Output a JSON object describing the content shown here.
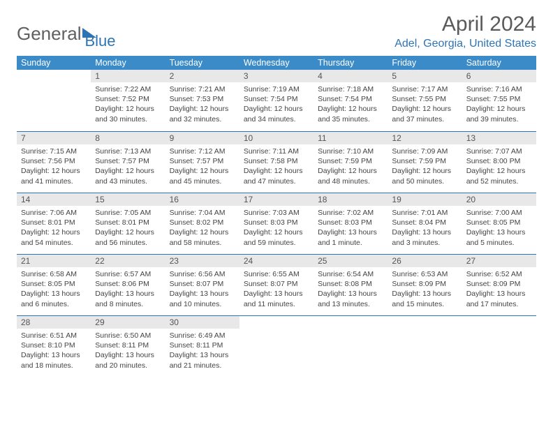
{
  "logo": {
    "part1": "General",
    "part2": "Blue"
  },
  "title": "April 2024",
  "location": "Adel, Georgia, United States",
  "colors": {
    "header_bg": "#3b8bc9",
    "accent": "#2e74b5",
    "daynum_bg": "#e8e8e8",
    "text": "#444444"
  },
  "weekdays": [
    "Sunday",
    "Monday",
    "Tuesday",
    "Wednesday",
    "Thursday",
    "Friday",
    "Saturday"
  ],
  "weeks": [
    [
      {
        "n": "",
        "sr": "",
        "ss": "",
        "dl": ""
      },
      {
        "n": "1",
        "sr": "Sunrise: 7:22 AM",
        "ss": "Sunset: 7:52 PM",
        "dl": "Daylight: 12 hours and 30 minutes."
      },
      {
        "n": "2",
        "sr": "Sunrise: 7:21 AM",
        "ss": "Sunset: 7:53 PM",
        "dl": "Daylight: 12 hours and 32 minutes."
      },
      {
        "n": "3",
        "sr": "Sunrise: 7:19 AM",
        "ss": "Sunset: 7:54 PM",
        "dl": "Daylight: 12 hours and 34 minutes."
      },
      {
        "n": "4",
        "sr": "Sunrise: 7:18 AM",
        "ss": "Sunset: 7:54 PM",
        "dl": "Daylight: 12 hours and 35 minutes."
      },
      {
        "n": "5",
        "sr": "Sunrise: 7:17 AM",
        "ss": "Sunset: 7:55 PM",
        "dl": "Daylight: 12 hours and 37 minutes."
      },
      {
        "n": "6",
        "sr": "Sunrise: 7:16 AM",
        "ss": "Sunset: 7:55 PM",
        "dl": "Daylight: 12 hours and 39 minutes."
      }
    ],
    [
      {
        "n": "7",
        "sr": "Sunrise: 7:15 AM",
        "ss": "Sunset: 7:56 PM",
        "dl": "Daylight: 12 hours and 41 minutes."
      },
      {
        "n": "8",
        "sr": "Sunrise: 7:13 AM",
        "ss": "Sunset: 7:57 PM",
        "dl": "Daylight: 12 hours and 43 minutes."
      },
      {
        "n": "9",
        "sr": "Sunrise: 7:12 AM",
        "ss": "Sunset: 7:57 PM",
        "dl": "Daylight: 12 hours and 45 minutes."
      },
      {
        "n": "10",
        "sr": "Sunrise: 7:11 AM",
        "ss": "Sunset: 7:58 PM",
        "dl": "Daylight: 12 hours and 47 minutes."
      },
      {
        "n": "11",
        "sr": "Sunrise: 7:10 AM",
        "ss": "Sunset: 7:59 PM",
        "dl": "Daylight: 12 hours and 48 minutes."
      },
      {
        "n": "12",
        "sr": "Sunrise: 7:09 AM",
        "ss": "Sunset: 7:59 PM",
        "dl": "Daylight: 12 hours and 50 minutes."
      },
      {
        "n": "13",
        "sr": "Sunrise: 7:07 AM",
        "ss": "Sunset: 8:00 PM",
        "dl": "Daylight: 12 hours and 52 minutes."
      }
    ],
    [
      {
        "n": "14",
        "sr": "Sunrise: 7:06 AM",
        "ss": "Sunset: 8:01 PM",
        "dl": "Daylight: 12 hours and 54 minutes."
      },
      {
        "n": "15",
        "sr": "Sunrise: 7:05 AM",
        "ss": "Sunset: 8:01 PM",
        "dl": "Daylight: 12 hours and 56 minutes."
      },
      {
        "n": "16",
        "sr": "Sunrise: 7:04 AM",
        "ss": "Sunset: 8:02 PM",
        "dl": "Daylight: 12 hours and 58 minutes."
      },
      {
        "n": "17",
        "sr": "Sunrise: 7:03 AM",
        "ss": "Sunset: 8:03 PM",
        "dl": "Daylight: 12 hours and 59 minutes."
      },
      {
        "n": "18",
        "sr": "Sunrise: 7:02 AM",
        "ss": "Sunset: 8:03 PM",
        "dl": "Daylight: 13 hours and 1 minute."
      },
      {
        "n": "19",
        "sr": "Sunrise: 7:01 AM",
        "ss": "Sunset: 8:04 PM",
        "dl": "Daylight: 13 hours and 3 minutes."
      },
      {
        "n": "20",
        "sr": "Sunrise: 7:00 AM",
        "ss": "Sunset: 8:05 PM",
        "dl": "Daylight: 13 hours and 5 minutes."
      }
    ],
    [
      {
        "n": "21",
        "sr": "Sunrise: 6:58 AM",
        "ss": "Sunset: 8:05 PM",
        "dl": "Daylight: 13 hours and 6 minutes."
      },
      {
        "n": "22",
        "sr": "Sunrise: 6:57 AM",
        "ss": "Sunset: 8:06 PM",
        "dl": "Daylight: 13 hours and 8 minutes."
      },
      {
        "n": "23",
        "sr": "Sunrise: 6:56 AM",
        "ss": "Sunset: 8:07 PM",
        "dl": "Daylight: 13 hours and 10 minutes."
      },
      {
        "n": "24",
        "sr": "Sunrise: 6:55 AM",
        "ss": "Sunset: 8:07 PM",
        "dl": "Daylight: 13 hours and 11 minutes."
      },
      {
        "n": "25",
        "sr": "Sunrise: 6:54 AM",
        "ss": "Sunset: 8:08 PM",
        "dl": "Daylight: 13 hours and 13 minutes."
      },
      {
        "n": "26",
        "sr": "Sunrise: 6:53 AM",
        "ss": "Sunset: 8:09 PM",
        "dl": "Daylight: 13 hours and 15 minutes."
      },
      {
        "n": "27",
        "sr": "Sunrise: 6:52 AM",
        "ss": "Sunset: 8:09 PM",
        "dl": "Daylight: 13 hours and 17 minutes."
      }
    ],
    [
      {
        "n": "28",
        "sr": "Sunrise: 6:51 AM",
        "ss": "Sunset: 8:10 PM",
        "dl": "Daylight: 13 hours and 18 minutes."
      },
      {
        "n": "29",
        "sr": "Sunrise: 6:50 AM",
        "ss": "Sunset: 8:11 PM",
        "dl": "Daylight: 13 hours and 20 minutes."
      },
      {
        "n": "30",
        "sr": "Sunrise: 6:49 AM",
        "ss": "Sunset: 8:11 PM",
        "dl": "Daylight: 13 hours and 21 minutes."
      },
      {
        "n": "",
        "sr": "",
        "ss": "",
        "dl": ""
      },
      {
        "n": "",
        "sr": "",
        "ss": "",
        "dl": ""
      },
      {
        "n": "",
        "sr": "",
        "ss": "",
        "dl": ""
      },
      {
        "n": "",
        "sr": "",
        "ss": "",
        "dl": ""
      }
    ]
  ]
}
